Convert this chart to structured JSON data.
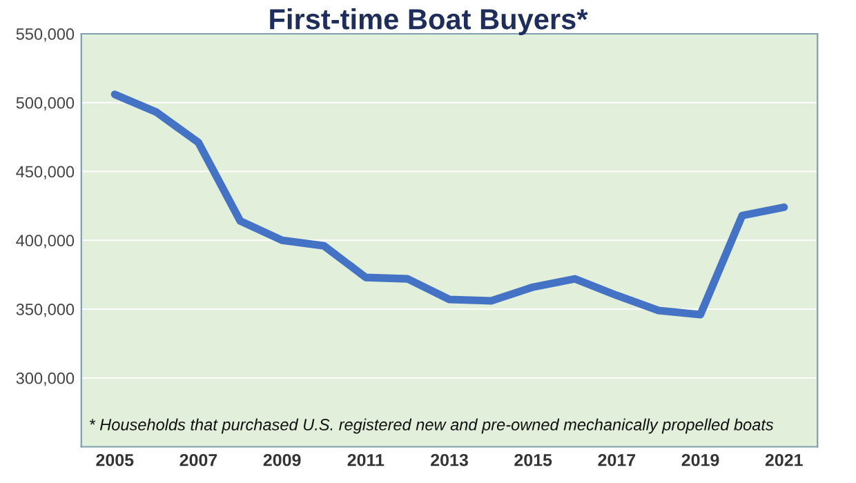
{
  "chart_data": {
    "type": "line",
    "title": "First-time Boat Buyers*",
    "x": [
      2005,
      2006,
      2007,
      2008,
      2009,
      2010,
      2011,
      2012,
      2013,
      2014,
      2015,
      2016,
      2017,
      2018,
      2019,
      2020,
      2021
    ],
    "series": [
      {
        "color": "#4472c4",
        "values": [
          506000,
          493000,
          471000,
          414000,
          400000,
          396000,
          373000,
          372000,
          357000,
          356000,
          366000,
          372000,
          360000,
          349000,
          346000,
          418000,
          424000
        ]
      }
    ],
    "xlim": [
      2004.2,
      2021.8
    ],
    "xticks": [
      2005,
      2007,
      2009,
      2011,
      2013,
      2015,
      2017,
      2019,
      2021
    ],
    "ylim": [
      250000,
      550000
    ],
    "yticks": [
      {
        "value": 300000,
        "label": "300,000"
      },
      {
        "value": 350000,
        "label": "350,000"
      },
      {
        "value": 400000,
        "label": "400,000"
      },
      {
        "value": 450000,
        "label": "450,000"
      },
      {
        "value": 500000,
        "label": "500,000"
      },
      {
        "value": 550000,
        "label": "550,000"
      }
    ],
    "grid": "y",
    "marker": "none",
    "line_style": "solid",
    "legend": false,
    "annotations": [
      "* Households that purchased U.S. registered new and pre-owned mechanically propelled boats"
    ]
  }
}
